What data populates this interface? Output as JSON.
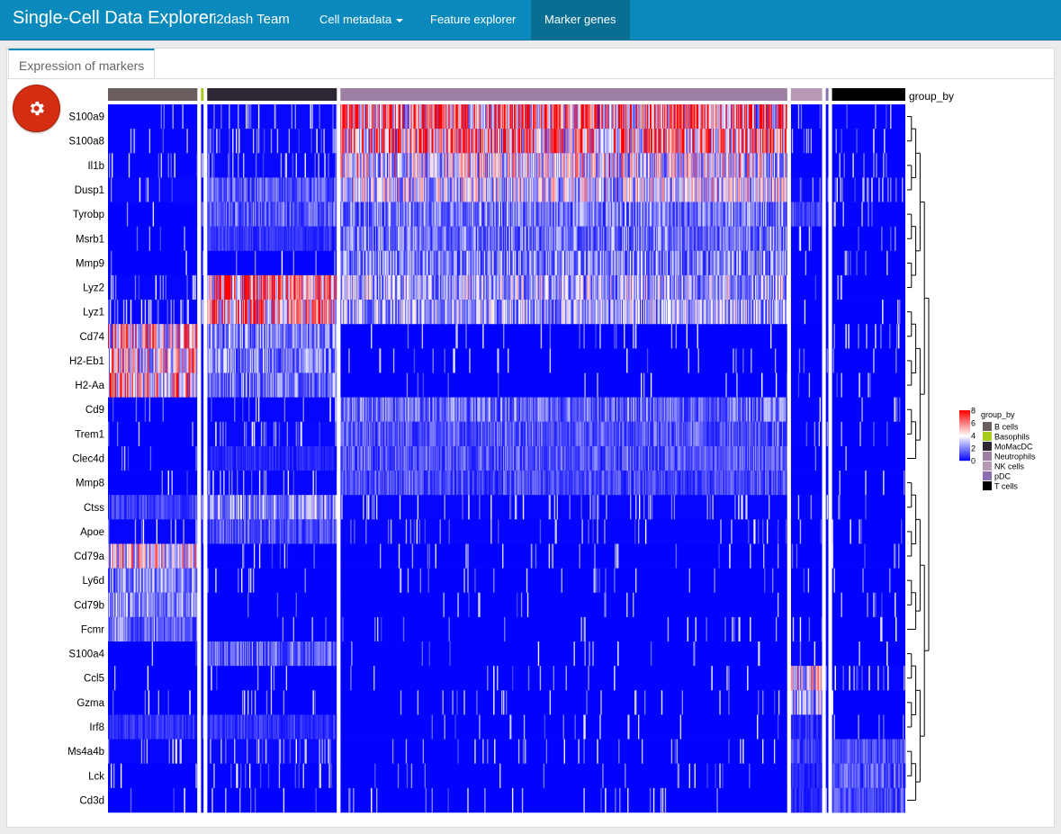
{
  "navbar": {
    "title": "Single-Cell Data Explorer",
    "team": "i2dash Team",
    "items": [
      {
        "label": "Cell metadata",
        "dropdown": true,
        "active": false
      },
      {
        "label": "Feature explorer",
        "dropdown": false,
        "active": false
      },
      {
        "label": "Marker genes",
        "dropdown": false,
        "active": true
      }
    ],
    "colors": {
      "bar": "#0a89bd",
      "active": "#0a6e93"
    }
  },
  "tab": {
    "label": "Expression of markers"
  },
  "settings_button": {
    "icon": "gear-icon",
    "color": "#d42e12"
  },
  "chart_data": {
    "type": "heatmap",
    "annotation_label": "group_by",
    "genes": [
      "S100a9",
      "S100a8",
      "Il1b",
      "Dusp1",
      "Tyrobp",
      "Msrb1",
      "Mmp9",
      "Lyz2",
      "Lyz1",
      "Cd74",
      "H2-Eb1",
      "H2-Aa",
      "Cd9",
      "Trem1",
      "Clec4d",
      "Mmp8",
      "Ctss",
      "Apoe",
      "Cd79a",
      "Ly6d",
      "Cd79b",
      "Fcmr",
      "S100a4",
      "Ccl5",
      "Gzma",
      "Irf8",
      "Ms4a4b",
      "Lck",
      "Cd3d"
    ],
    "groups": [
      {
        "name": "B cells",
        "color": "#6b5e5e",
        "cells": 100
      },
      {
        "name": "Basophils",
        "color": "#a8cc1c",
        "cells": 3
      },
      {
        "name": "MoMacDC",
        "color": "#2e2632",
        "cells": 145
      },
      {
        "name": "Neutrophils",
        "color": "#9c7fa2",
        "cells": 500
      },
      {
        "name": "NK cells",
        "color": "#b89ab6",
        "cells": 35
      },
      {
        "name": "pDC",
        "color": "#8c6fb0",
        "cells": 3
      },
      {
        "name": "T cells",
        "color": "#000000",
        "cells": 82
      }
    ],
    "mean_expression": [
      [
        0.2,
        0.2,
        0.4,
        6.5,
        0.2,
        0.2,
        0.2
      ],
      [
        0.2,
        0.2,
        0.4,
        6.0,
        0.2,
        0.2,
        0.2
      ],
      [
        0.2,
        0.2,
        0.4,
        4.0,
        0.2,
        0.2,
        0.2
      ],
      [
        0.4,
        0.3,
        1.5,
        3.6,
        0.5,
        0.3,
        0.3
      ],
      [
        0.1,
        1.5,
        1.5,
        2.0,
        1.2,
        0.3,
        0.2
      ],
      [
        0.1,
        0.2,
        0.8,
        2.0,
        0.2,
        0.1,
        0.1
      ],
      [
        0.1,
        0.2,
        0.2,
        2.2,
        0.2,
        0.1,
        0.1
      ],
      [
        0.3,
        0.3,
        6.8,
        3.0,
        0.2,
        0.2,
        0.1
      ],
      [
        0.3,
        0.3,
        6.0,
        2.8,
        0.2,
        0.2,
        0.1
      ],
      [
        5.0,
        0.3,
        2.2,
        0.1,
        0.1,
        0.2,
        0.1
      ],
      [
        4.5,
        0.3,
        2.2,
        0.1,
        0.1,
        0.2,
        0.1
      ],
      [
        5.0,
        0.3,
        2.0,
        0.1,
        0.1,
        0.2,
        0.1
      ],
      [
        0.1,
        0.2,
        0.3,
        1.8,
        0.2,
        0.1,
        0.1
      ],
      [
        0.1,
        0.2,
        0.4,
        1.4,
        0.2,
        0.1,
        0.1
      ],
      [
        0.1,
        0.2,
        0.6,
        1.4,
        0.1,
        0.1,
        0.1
      ],
      [
        0.1,
        0.2,
        0.3,
        1.2,
        0.1,
        0.1,
        0.1
      ],
      [
        1.0,
        0.5,
        2.6,
        0.3,
        0.3,
        0.3,
        0.1
      ],
      [
        0.3,
        0.2,
        1.4,
        0.2,
        0.1,
        0.1,
        0.1
      ],
      [
        4.0,
        0.1,
        0.1,
        0.1,
        0.1,
        0.1,
        0.1
      ],
      [
        2.2,
        0.1,
        0.1,
        0.1,
        0.1,
        0.1,
        0.1
      ],
      [
        2.4,
        0.1,
        0.1,
        0.1,
        0.1,
        0.1,
        0.1
      ],
      [
        1.8,
        0.1,
        0.1,
        0.1,
        0.1,
        0.1,
        0.1
      ],
      [
        0.1,
        0.3,
        1.6,
        0.1,
        0.3,
        0.1,
        0.1
      ],
      [
        0.1,
        0.1,
        0.1,
        0.1,
        4.0,
        0.1,
        0.3
      ],
      [
        0.1,
        0.1,
        0.1,
        0.1,
        3.0,
        0.1,
        0.1
      ],
      [
        0.8,
        0.3,
        0.8,
        0.1,
        0.8,
        0.3,
        0.1
      ],
      [
        0.3,
        0.2,
        0.5,
        0.1,
        1.2,
        0.1,
        1.2
      ],
      [
        0.1,
        0.1,
        0.2,
        0.1,
        0.6,
        0.1,
        1.4
      ],
      [
        0.1,
        0.1,
        0.1,
        0.1,
        0.6,
        0.1,
        1.2
      ]
    ],
    "color_scale": {
      "ticks": [
        8,
        6,
        4,
        2,
        0
      ],
      "low": "#0000ff",
      "mid": "#ffffff",
      "high": "#ff0000"
    },
    "legend": {
      "title": "group_by",
      "position": "right"
    },
    "dendrogram": "right"
  }
}
